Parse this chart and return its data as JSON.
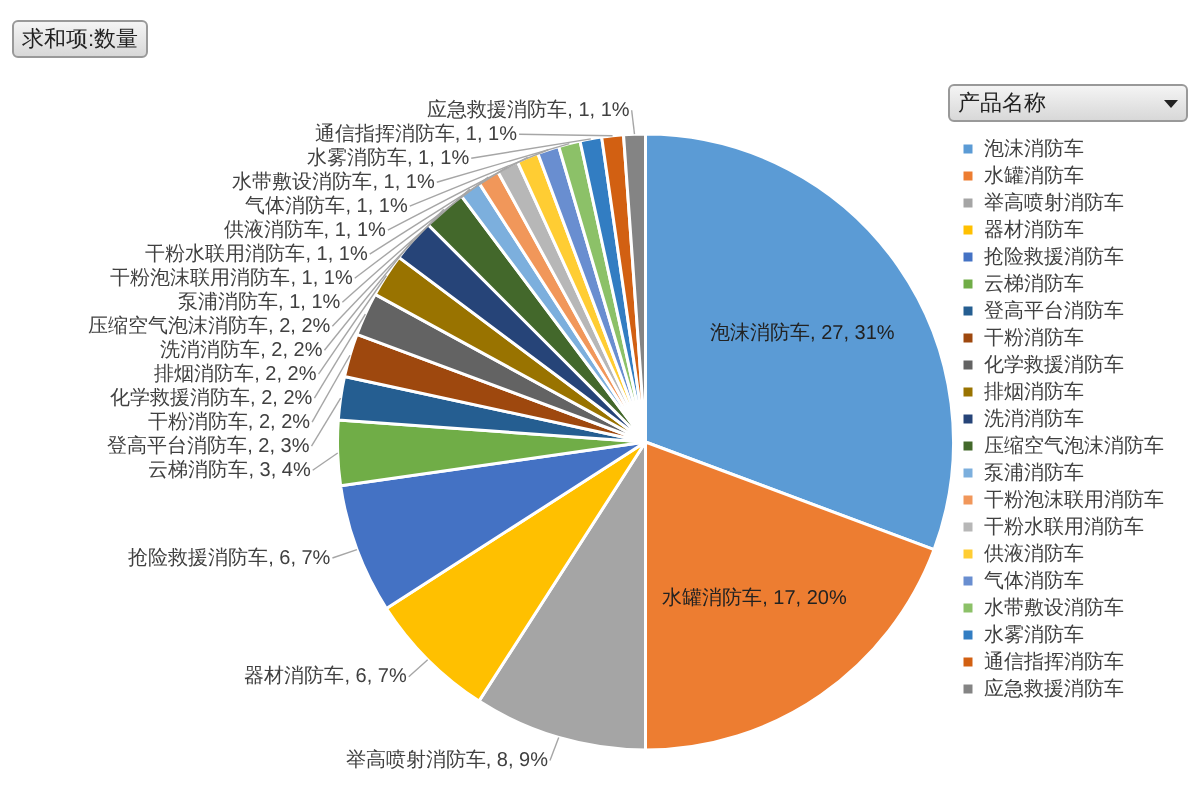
{
  "chart_data": {
    "type": "pie",
    "title": "求和项:数量",
    "legend_title": "产品名称",
    "legend": "right",
    "categories": [
      "泡沫消防车",
      "水罐消防车",
      "举高喷射消防车",
      "器材消防车",
      "抢险救援消防车",
      "云梯消防车",
      "登高平台消防车",
      "干粉消防车",
      "化学救援消防车",
      "排烟消防车",
      "洗消消防车",
      "压缩空气泡沫消防车",
      "泵浦消防车",
      "干粉泡沫联用消防车",
      "干粉水联用消防车",
      "供液消防车",
      "气体消防车",
      "水带敷设消防车",
      "水雾消防车",
      "通信指挥消防车",
      "应急救援消防车"
    ],
    "values": [
      27,
      17,
      8,
      6,
      6,
      3,
      2,
      2,
      2,
      2,
      2,
      2,
      1,
      1,
      1,
      1,
      1,
      1,
      1,
      1,
      1
    ],
    "value_labels": [
      "泡沫消防车, 27, 31%",
      "水罐消防车, 17, 20%",
      "举高喷射消防车, 8, 9%",
      "器材消防车, 6, 7%",
      "抢险救援消防车, 6, 7%",
      "云梯消防车, 3, 4%",
      "登高平台消防车, 2, 3%",
      "干粉消防车, 2, 2%",
      "化学救援消防车, 2, 2%",
      "排烟消防车, 2, 2%",
      "洗消消防车, 2, 2%",
      "压缩空气泡沫消防车, 2, 2%",
      "泵浦消防车, 1, 1%",
      "干粉泡沫联用消防车, 1, 1%",
      "干粉水联用消防车, 1, 1%",
      "供液消防车, 1, 1%",
      "气体消防车, 1, 1%",
      "水带敷设消防车, 1, 1%",
      "水雾消防车, 1, 1%",
      "通信指挥消防车, 1, 1%",
      "应急救援消防车, 1, 1%"
    ],
    "colors": [
      "#5b9bd5",
      "#ed7d31",
      "#a5a5a5",
      "#ffc000",
      "#4472c4",
      "#70ad47",
      "#255e91",
      "#9e480e",
      "#636363",
      "#997300",
      "#264478",
      "#43682b",
      "#7cafdd",
      "#f1975a",
      "#b7b7b7",
      "#ffcd33",
      "#698ed0",
      "#8cc168",
      "#327dc2",
      "#d26012",
      "#848484"
    ]
  }
}
